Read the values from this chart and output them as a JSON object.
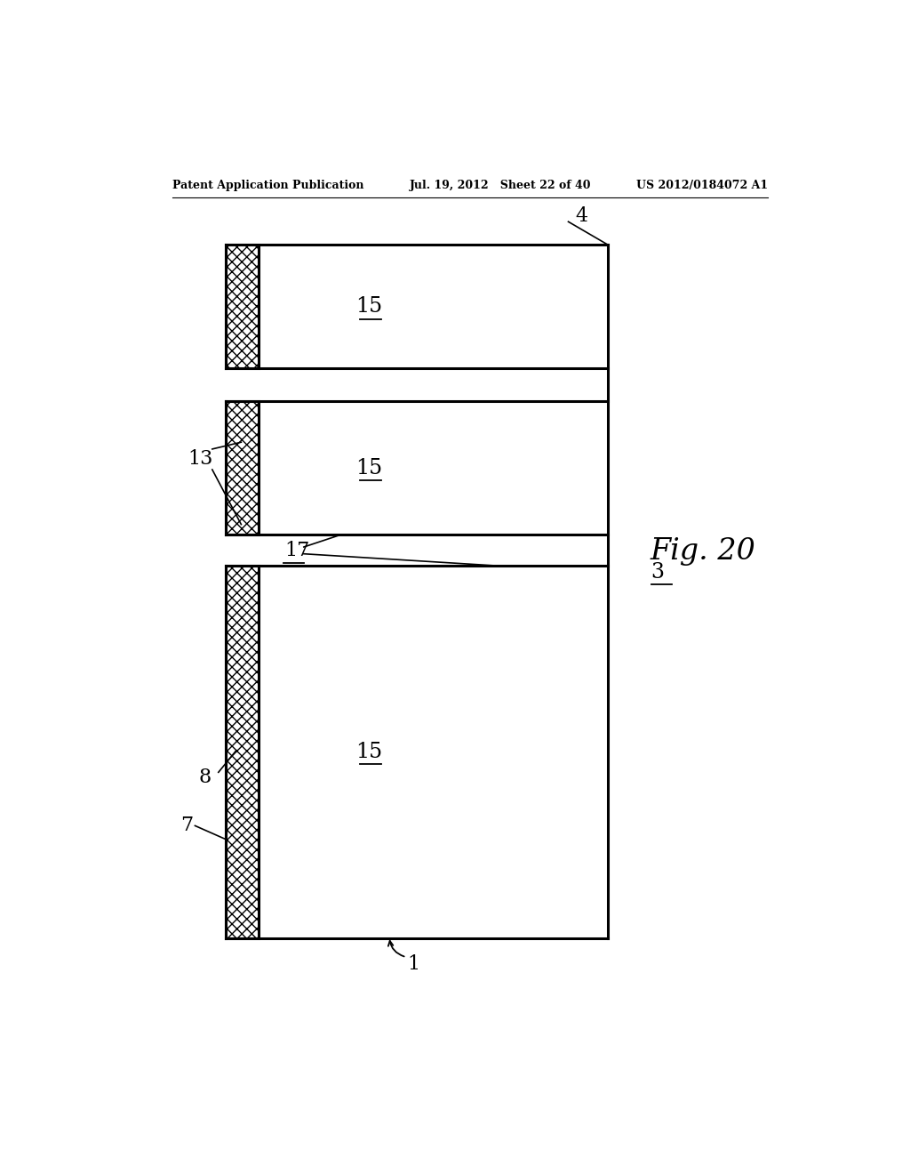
{
  "header_left": "Patent Application Publication",
  "header_mid": "Jul. 19, 2012   Sheet 22 of 40",
  "header_right": "US 2012/0184072 A1",
  "fig_label": "Fig. 20",
  "label_1": "1",
  "label_3": "3",
  "label_4": "4",
  "label_7": "7",
  "label_8": "8",
  "label_13": "13",
  "label_15": "15",
  "label_17": "17",
  "bg_color": "#ffffff",
  "line_color": "#000000"
}
